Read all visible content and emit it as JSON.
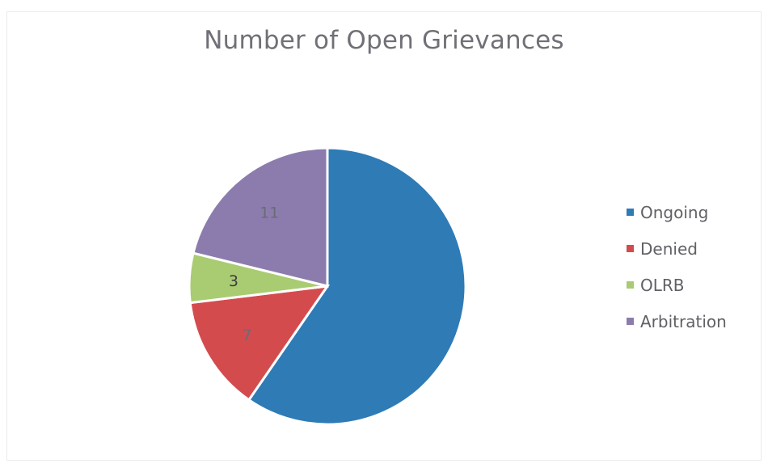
{
  "chart_data": {
    "type": "pie",
    "title": "Number of Open Grievances",
    "labels": [
      "Ongoing",
      "Denied",
      "OLRB",
      "Arbitration"
    ],
    "values": [
      31,
      7,
      3,
      11
    ],
    "data_labels": [
      "",
      "7",
      "3",
      "11"
    ],
    "colors": [
      "#2e7bb6",
      "#d44b4e",
      "#a9cc72",
      "#8c7cae"
    ],
    "legend": "right"
  }
}
